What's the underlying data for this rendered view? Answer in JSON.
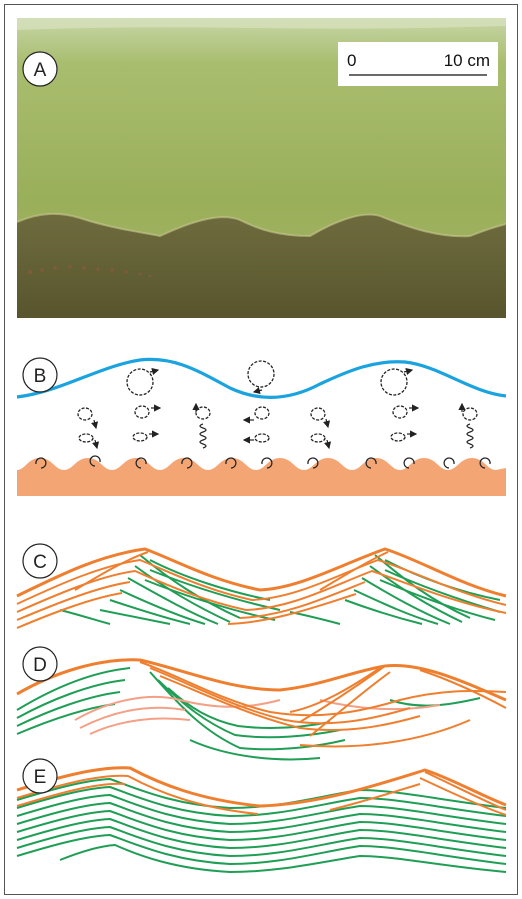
{
  "panels": [
    {
      "label": "A"
    },
    {
      "label": "B"
    },
    {
      "label": "C"
    },
    {
      "label": "D"
    },
    {
      "label": "E"
    }
  ],
  "scale_bar": {
    "start": "0",
    "end": "10 cm"
  },
  "colors": {
    "water_line": "#1aa3df",
    "sand": "#f4a574",
    "orange_lamina": "#ef7f2e",
    "green_lamina": "#1f9e55",
    "pink_lamina": "#f3a086",
    "photo_water": "#9eb15c",
    "photo_sand": "#6c6a3c"
  }
}
